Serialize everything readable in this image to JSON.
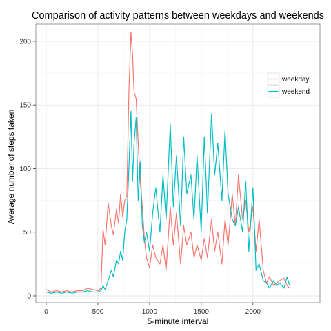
{
  "chart_data": {
    "type": "line",
    "title": "Comparison of activity patterns between weekdays and weekends",
    "xlabel": "5-minute interval",
    "ylabel": "Average number of steps taken",
    "xlim": [
      0,
      2355
    ],
    "ylim": [
      0,
      207
    ],
    "xticks": [
      0,
      500,
      1000,
      1500,
      2000
    ],
    "yticks": [
      0,
      50,
      100,
      150,
      200
    ],
    "grid": true,
    "legend_position": "right-top",
    "series": [
      {
        "name": "weekday",
        "color": "#F8766D",
        "x": [
          0,
          50,
          100,
          150,
          200,
          250,
          300,
          350,
          400,
          450,
          500,
          530,
          550,
          570,
          600,
          630,
          650,
          680,
          700,
          720,
          740,
          760,
          780,
          800,
          820,
          835,
          850,
          870,
          890,
          910,
          930,
          950,
          970,
          1000,
          1030,
          1060,
          1100,
          1130,
          1160,
          1200,
          1230,
          1260,
          1300,
          1330,
          1360,
          1400,
          1430,
          1460,
          1500,
          1530,
          1560,
          1600,
          1630,
          1660,
          1700,
          1730,
          1760,
          1800,
          1830,
          1860,
          1900,
          1930,
          1960,
          2000,
          2030,
          2060,
          2100,
          2130,
          2160,
          2200,
          2230,
          2260,
          2300,
          2330,
          2355
        ],
        "values": [
          5,
          3,
          4,
          3,
          4,
          3,
          4,
          4,
          6,
          5,
          4,
          6,
          52,
          40,
          73,
          55,
          48,
          68,
          57,
          80,
          62,
          75,
          78,
          160,
          207,
          190,
          160,
          155,
          120,
          90,
          70,
          45,
          30,
          22,
          40,
          30,
          25,
          40,
          20,
          70,
          40,
          65,
          25,
          55,
          40,
          50,
          30,
          40,
          28,
          45,
          30,
          60,
          35,
          50,
          25,
          60,
          40,
          80,
          55,
          95,
          60,
          75,
          50,
          70,
          35,
          60,
          20,
          10,
          15,
          8,
          10,
          12,
          14,
          8,
          6
        ]
      },
      {
        "name": "weekend",
        "color": "#00BFC4",
        "x": [
          0,
          50,
          100,
          150,
          200,
          250,
          300,
          350,
          400,
          450,
          500,
          530,
          550,
          570,
          600,
          630,
          650,
          680,
          700,
          720,
          740,
          760,
          780,
          800,
          820,
          835,
          850,
          870,
          890,
          910,
          930,
          950,
          970,
          1000,
          1030,
          1060,
          1100,
          1130,
          1160,
          1200,
          1230,
          1260,
          1300,
          1330,
          1360,
          1400,
          1430,
          1460,
          1500,
          1530,
          1560,
          1600,
          1630,
          1660,
          1700,
          1730,
          1760,
          1800,
          1830,
          1860,
          1900,
          1930,
          1960,
          2000,
          2030,
          2060,
          2100,
          2130,
          2160,
          2200,
          2230,
          2260,
          2300,
          2330,
          2355
        ],
        "values": [
          3,
          2,
          3,
          2,
          3,
          2,
          3,
          3,
          4,
          3,
          3,
          4,
          8,
          5,
          12,
          20,
          15,
          28,
          25,
          35,
          28,
          50,
          60,
          100,
          145,
          90,
          120,
          140,
          75,
          105,
          55,
          42,
          50,
          35,
          65,
          85,
          50,
          95,
          60,
          135,
          70,
          110,
          55,
          125,
          80,
          95,
          60,
          110,
          50,
          125,
          65,
          143,
          95,
          120,
          75,
          130,
          80,
          60,
          55,
          70,
          50,
          90,
          35,
          85,
          20,
          25,
          12,
          10,
          6,
          12,
          8,
          10,
          6,
          15,
          8
        ]
      }
    ]
  }
}
